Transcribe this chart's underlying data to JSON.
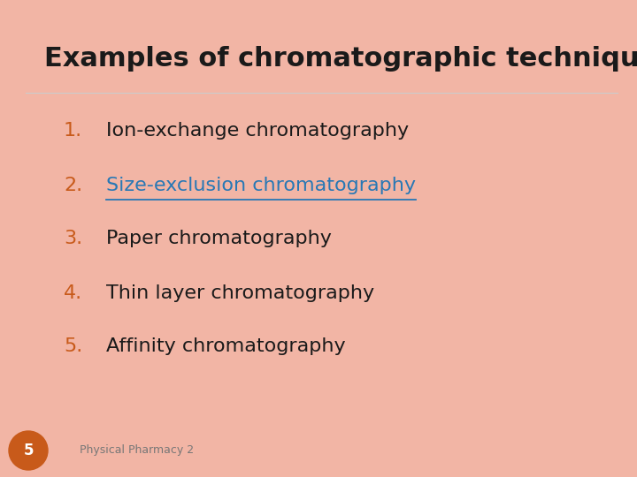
{
  "title": "Examples of chromatographic techniques",
  "title_color": "#1a1a1a",
  "title_fontsize": 22,
  "title_bold": true,
  "bg_color": "#f2b5a5",
  "items": [
    {
      "num": "1.",
      "text": "Ion-exchange chromatography",
      "underline": false,
      "text_color": "#1a1a1a",
      "num_color": "#c85a1a"
    },
    {
      "num": "2.",
      "text": "Size-exclusion chromatography",
      "underline": true,
      "text_color": "#2878b5",
      "num_color": "#c85a1a"
    },
    {
      "num": "3.",
      "text": "Paper chromatography",
      "underline": false,
      "text_color": "#1a1a1a",
      "num_color": "#c85a1a"
    },
    {
      "num": "4.",
      "text": "Thin layer chromatography",
      "underline": false,
      "text_color": "#1a1a1a",
      "num_color": "#c85a1a"
    },
    {
      "num": "5.",
      "text": "Affinity chromatography",
      "underline": false,
      "text_color": "#1a1a1a",
      "num_color": "#c85a1a"
    }
  ],
  "item_fontsize": 16,
  "footer_text": "Physical Pharmacy 2",
  "footer_fontsize": 9,
  "footer_color": "#777777",
  "badge_color": "#c85a1a",
  "badge_text": "5",
  "badge_text_color": "#ffffff",
  "badge_fontsize": 12
}
